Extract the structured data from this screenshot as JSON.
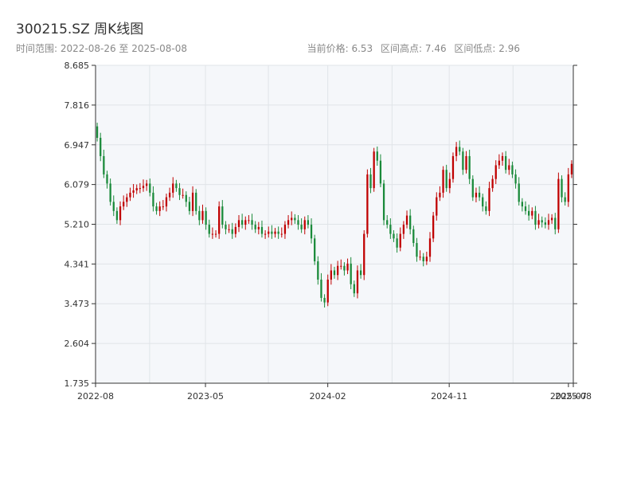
{
  "header": {
    "title": "300215.SZ 周K线图",
    "subtitle": "时间范围: 2022-08-26 至 2025-08-08",
    "current_price": "当前价格: 6.53",
    "period_high": "区间高点: 7.46",
    "period_low": "区间低点: 2.96"
  },
  "colors": {
    "up": "#c00000",
    "down": "#1a8a3a",
    "plot_bg": "#f5f7fa",
    "grid": "#e0e4e8",
    "axis": "#333333"
  },
  "chart_data": {
    "type": "candlestick",
    "title": "300215.SZ 周K线图",
    "ylim": [
      1.735,
      8.685
    ],
    "yticks": [
      "8.685",
      "7.816",
      "6.947",
      "6.079",
      "5.210",
      "4.341",
      "3.473",
      "2.604",
      "1.735"
    ],
    "xticks": [
      "2022-08",
      "2023-05",
      "2024-02",
      "2024-11",
      "2025-07",
      "2025-08"
    ],
    "x_range": [
      "2022-08-26",
      "2025-08-08"
    ],
    "xtick_dates": [
      "2022-08-26",
      "2023-05-01",
      "2024-02-01",
      "2024-11-01",
      "2025-07-28",
      "2025-08-08"
    ],
    "candles_weekly_close": [
      7.1,
      6.7,
      6.3,
      6.1,
      5.7,
      5.5,
      5.3,
      5.6,
      5.7,
      5.8,
      5.9,
      5.95,
      6.0,
      6.0,
      6.05,
      6.1,
      5.9,
      5.6,
      5.5,
      5.6,
      5.6,
      5.8,
      5.9,
      6.1,
      6.0,
      5.85,
      5.85,
      5.7,
      5.5,
      5.9,
      5.5,
      5.3,
      5.5,
      5.2,
      5.0,
      5.0,
      5.0,
      5.6,
      5.2,
      5.1,
      5.1,
      5.0,
      5.15,
      5.3,
      5.2,
      5.3,
      5.3,
      5.2,
      5.1,
      5.15,
      5.0,
      5.0,
      5.05,
      5.0,
      5.05,
      5.0,
      5.0,
      5.2,
      5.3,
      5.35,
      5.3,
      5.2,
      5.1,
      5.3,
      5.2,
      4.9,
      4.4,
      4.0,
      3.6,
      3.5,
      4.0,
      4.2,
      4.1,
      4.3,
      4.3,
      4.2,
      4.35,
      3.9,
      3.7,
      4.2,
      4.1,
      5.0,
      6.3,
      6.0,
      6.8,
      6.6,
      6.1,
      5.3,
      5.2,
      5.0,
      4.9,
      4.7,
      5.0,
      5.2,
      5.4,
      5.1,
      4.8,
      4.5,
      4.5,
      4.4,
      4.5,
      4.9,
      5.4,
      5.8,
      5.9,
      6.4,
      6.0,
      6.2,
      6.7,
      6.9,
      6.8,
      6.4,
      6.7,
      6.2,
      5.8,
      5.9,
      5.8,
      5.6,
      5.5,
      6.0,
      6.2,
      6.5,
      6.6,
      6.7,
      6.4,
      6.5,
      6.3,
      6.1,
      5.7,
      5.6,
      5.5,
      5.4,
      5.5,
      5.2,
      5.3,
      5.25,
      5.2,
      5.3,
      5.35,
      5.1,
      6.2,
      5.8,
      5.7,
      6.3,
      6.53
    ]
  }
}
